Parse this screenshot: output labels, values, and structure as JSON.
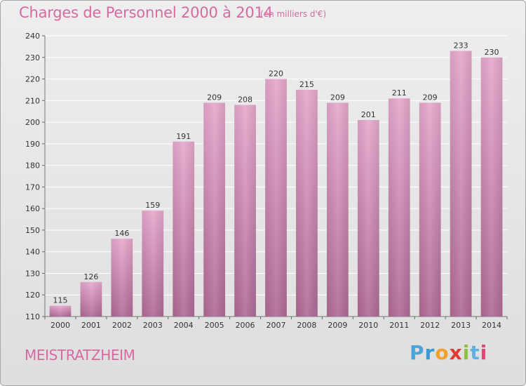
{
  "title": "Charges de Personnel 2000 à 2014",
  "subtitle": "(en milliers d'€)",
  "town": "MEISTRATZHEIM",
  "logo": {
    "letters": [
      "P",
      "r",
      "o",
      "x",
      "i",
      "t",
      "i"
    ]
  },
  "colors": {
    "bar_top": "#e6a8cd",
    "bar_bottom": "#b06a95",
    "title": "#d76aa1",
    "grid": "#ffffff"
  },
  "chart_data": {
    "type": "bar",
    "categories": [
      "2000",
      "2001",
      "2002",
      "2003",
      "2004",
      "2005",
      "2006",
      "2007",
      "2008",
      "2009",
      "2010",
      "2011",
      "2012",
      "2013",
      "2014"
    ],
    "values": [
      115,
      126,
      146,
      159,
      191,
      209,
      208,
      220,
      215,
      209,
      201,
      211,
      209,
      233,
      230
    ],
    "ylim": [
      110,
      240
    ],
    "yticks": [
      110,
      120,
      130,
      140,
      150,
      160,
      170,
      180,
      190,
      200,
      210,
      220,
      230,
      240
    ],
    "grid": true,
    "data_labels": true
  }
}
